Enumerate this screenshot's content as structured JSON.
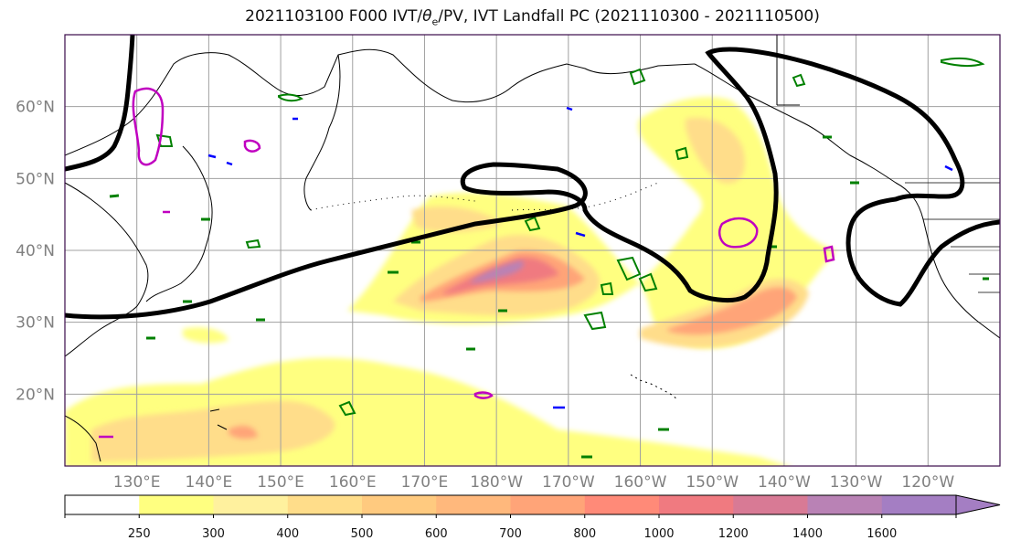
{
  "title_prefix": "2021103100 F000 IVT/",
  "title_theta": "θ",
  "title_sub": "e",
  "title_suffix": "/PV, IVT Landfall PC (2021110300 - 2021110500)",
  "map": {
    "extent": {
      "lon_min": 120,
      "lon_max": 250,
      "lat_min": 10,
      "lat_max": 70
    },
    "lat_labels": [
      {
        "lat": 60,
        "text": "60°N"
      },
      {
        "lat": 50,
        "text": "50°N"
      },
      {
        "lat": 40,
        "text": "40°N"
      },
      {
        "lat": 30,
        "text": "30°N"
      },
      {
        "lat": 20,
        "text": "20°N"
      }
    ],
    "lon_labels": [
      {
        "lon": 130,
        "text": "130°E"
      },
      {
        "lon": 140,
        "text": "140°E"
      },
      {
        "lon": 150,
        "text": "150°E"
      },
      {
        "lon": 160,
        "text": "160°E"
      },
      {
        "lon": 170,
        "text": "170°E"
      },
      {
        "lon": 180,
        "text": "180°W"
      },
      {
        "lon": 190,
        "text": "170°W"
      },
      {
        "lon": 200,
        "text": "160°W"
      },
      {
        "lon": 210,
        "text": "150°W"
      },
      {
        "lon": 220,
        "text": "140°W"
      },
      {
        "lon": 230,
        "text": "130°W"
      },
      {
        "lon": 240,
        "text": "120°W"
      }
    ],
    "colors": {
      "land": "#000000",
      "grid": "#a0a0a0",
      "pc_contour": "#000000",
      "theta_e": "#008000",
      "pv_high": "#c000c0",
      "pv_low": "#0000ff",
      "frame": "#3a0a4a"
    }
  },
  "colorbar": {
    "bins": [
      {
        "lo": 0,
        "hi": 250,
        "color": "#ffffff"
      },
      {
        "lo": 250,
        "hi": 300,
        "color": "#ffff80"
      },
      {
        "lo": 300,
        "hi": 400,
        "color": "#fff19e"
      },
      {
        "lo": 400,
        "hi": 500,
        "color": "#ffdd8a"
      },
      {
        "lo": 500,
        "hi": 600,
        "color": "#ffca7f"
      },
      {
        "lo": 600,
        "hi": 700,
        "color": "#ffb87c"
      },
      {
        "lo": 700,
        "hi": 800,
        "color": "#ffa478"
      },
      {
        "lo": 800,
        "hi": 1000,
        "color": "#ff8a78"
      },
      {
        "lo": 1000,
        "hi": 1200,
        "color": "#f07a80"
      },
      {
        "lo": 1200,
        "hi": 1400,
        "color": "#d87a95"
      },
      {
        "lo": 1400,
        "hi": 1600,
        "color": "#b982b5"
      },
      {
        "lo": 1600,
        "hi": 1800,
        "color": "#a47ec3"
      }
    ],
    "tick_labels": [
      "250",
      "300",
      "400",
      "500",
      "600",
      "700",
      "800",
      "1000",
      "1200",
      "1400",
      "1600"
    ],
    "extend": "max"
  }
}
